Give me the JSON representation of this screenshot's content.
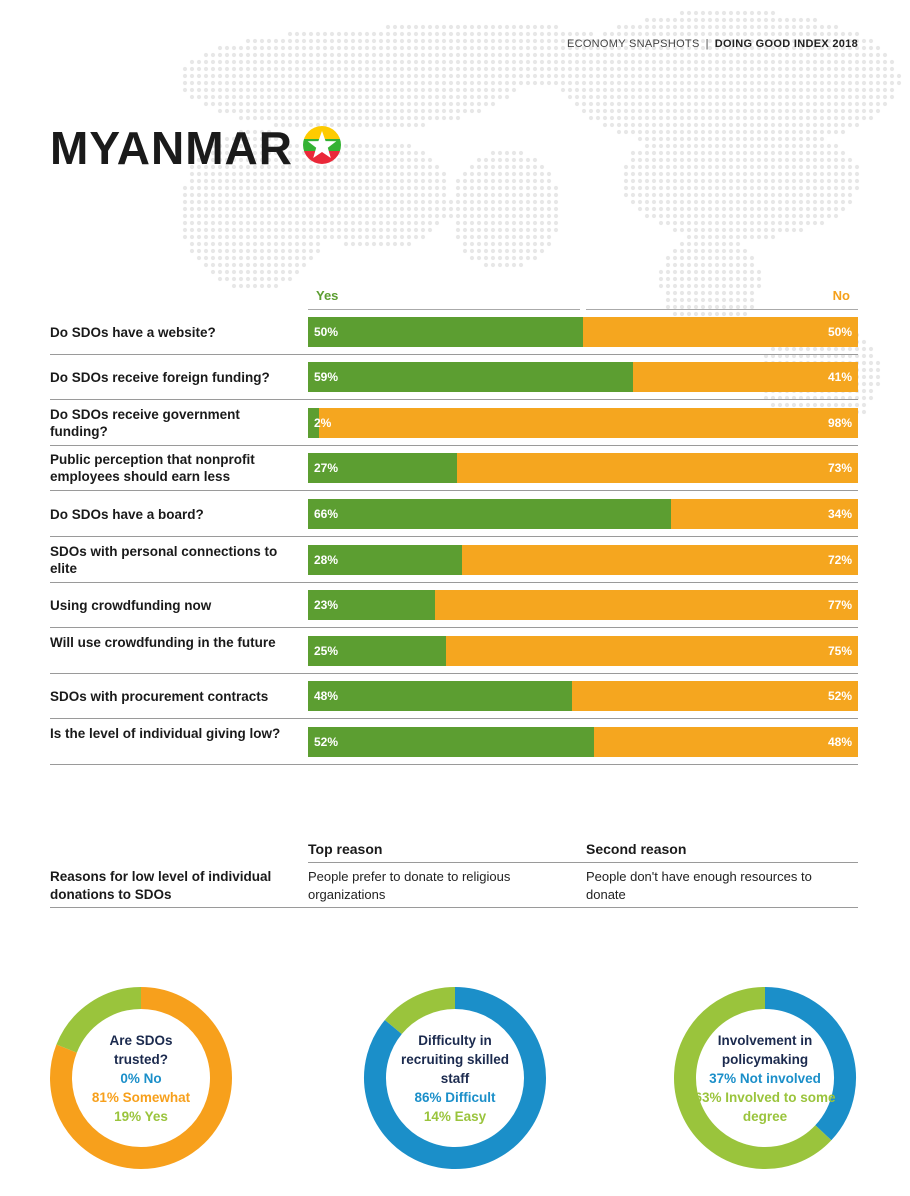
{
  "header": {
    "section": "ECONOMY SNAPSHOTS",
    "separator": "|",
    "report": "DOING GOOD INDEX 2018"
  },
  "title": "MYANMAR",
  "colors": {
    "yes": "#5c9e31",
    "no": "#f5a61f",
    "navy": "#1b2a4e",
    "blue": "#1b8fc9",
    "lime": "#9ac43c",
    "orange": "#f7a01c"
  },
  "chart_data": [
    {
      "type": "bar",
      "orientation": "horizontal-stacked",
      "legend": [
        "Yes",
        "No"
      ],
      "categories": [
        "Do SDOs have a website?",
        "Do SDOs receive foreign funding?",
        "Do SDOs receive government funding?",
        "Public perception that nonprofit employees should earn less",
        "Do SDOs have a board?",
        "SDOs with personal connections to elite",
        "Using crowdfunding now",
        "Will use crowdfunding in the future",
        "SDOs with procurement contracts",
        "Is the level of individual giving low?"
      ],
      "series": [
        {
          "name": "Yes",
          "values": [
            50,
            59,
            2,
            27,
            66,
            28,
            23,
            25,
            48,
            52
          ]
        },
        {
          "name": "No",
          "values": [
            50,
            41,
            98,
            73,
            34,
            72,
            77,
            75,
            52,
            48
          ]
        }
      ],
      "yes_labels": [
        "50%",
        "59%",
        "2%",
        "27%",
        "66%",
        "28%",
        "23%",
        "25%",
        "48%",
        "52%"
      ],
      "no_labels": [
        "50%",
        "41%",
        "98%",
        "73%",
        "34%",
        "72%",
        "77%",
        "75%",
        "52%",
        "48%"
      ],
      "xlim": [
        0,
        100
      ]
    },
    {
      "type": "pie",
      "variant": "donut",
      "title": "Are SDOs trusted?",
      "labels": [
        "0% No",
        "81% Somewhat",
        "19% Yes"
      ],
      "values": [
        0,
        81,
        19
      ],
      "colors": [
        "#1b8fc9",
        "#f7a01c",
        "#9ac43c"
      ]
    },
    {
      "type": "pie",
      "variant": "donut",
      "title": "Difficulty in recruiting skilled staff",
      "labels": [
        "86% Difficult",
        "14% Easy"
      ],
      "values": [
        86,
        14
      ],
      "colors": [
        "#1b8fc9",
        "#9ac43c"
      ]
    },
    {
      "type": "pie",
      "variant": "donut",
      "title": "Involvement in policymaking",
      "labels": [
        "37% Not involved",
        "63% Involved to some degree"
      ],
      "values": [
        37,
        63
      ],
      "colors": [
        "#1b8fc9",
        "#9ac43c"
      ]
    }
  ],
  "rows": [
    {
      "label": "Do SDOs have a website?"
    },
    {
      "label": "Do SDOs receive foreign funding?"
    },
    {
      "label": "Do SDOs receive government funding?"
    },
    {
      "label": "Public perception that nonprofit employees should earn less"
    },
    {
      "label": "Do SDOs have a board?"
    },
    {
      "label": "SDOs with personal connections to elite"
    },
    {
      "label": "Using crowdfunding now"
    },
    {
      "label": "Will use crowdfunding in the future"
    },
    {
      "label": "SDOs with procurement contracts"
    },
    {
      "label": "Is the level of individual giving low?"
    }
  ],
  "reasons": {
    "top_header": "Top reason",
    "second_header": "Second reason",
    "question": "Reasons for low level of individual donations to SDOs",
    "top": "People prefer to donate to religious organizations",
    "second": "People don't have enough resources to donate"
  },
  "donuts": [
    {
      "title": "Are SDOs trusted?",
      "lines": [
        "0% No",
        "81% Somewhat",
        "19% Yes"
      ]
    },
    {
      "title": "Difficulty in recruiting skilled staff",
      "lines": [
        "86% Difficult",
        "14% Easy"
      ]
    },
    {
      "title": "Involvement in policymaking",
      "lines": [
        "37% Not involved",
        "63% Involved to some degree"
      ]
    }
  ]
}
